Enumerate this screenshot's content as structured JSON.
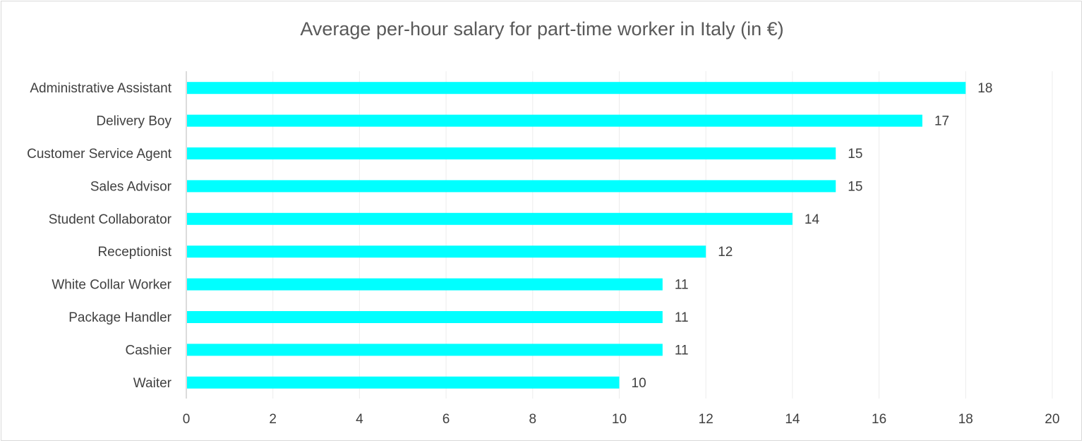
{
  "chart_data": {
    "type": "bar",
    "orientation": "horizontal",
    "title": "Average per-hour salary for part-time worker in Italy (in €)",
    "categories": [
      "Administrative Assistant",
      "Delivery Boy",
      "Customer Service Agent",
      "Sales Advisor",
      "Student Collaborator",
      "Receptionist",
      "White Collar Worker",
      "Package Handler",
      "Cashier",
      "Waiter"
    ],
    "values": [
      18,
      17,
      15,
      15,
      14,
      12,
      11,
      11,
      11,
      10
    ],
    "xlim": [
      0,
      20
    ],
    "xticks": [
      "0",
      "2",
      "4",
      "6",
      "8",
      "10",
      "12",
      "14",
      "16",
      "18",
      "20"
    ],
    "grid": true,
    "data_labels": true,
    "bar_color": "#00FFFF"
  }
}
